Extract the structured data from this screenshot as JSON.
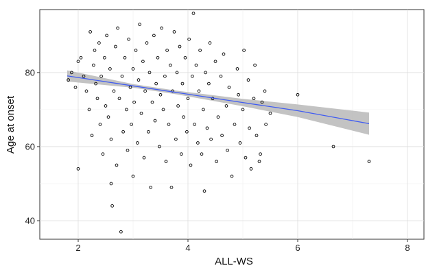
{
  "chart_data": {
    "type": "scatter",
    "title": "",
    "xlabel": "ALL-WS",
    "ylabel": "Age at onset",
    "xlim": [
      1.3,
      8.3
    ],
    "ylim": [
      35,
      97
    ],
    "x_ticks": [
      2,
      4,
      6,
      8
    ],
    "y_ticks": [
      40,
      60,
      80
    ],
    "x_tick_labels": [
      "2",
      "4",
      "6",
      "8"
    ],
    "y_tick_labels": [
      "40",
      "60",
      "80"
    ],
    "grid": true,
    "legend": "none",
    "point_color": "#000000",
    "point_style": "open-circle",
    "fit_line": {
      "method": "linear",
      "color": "#3f5bf2",
      "band_color": "#bdbdbd",
      "points": [
        {
          "x": 1.8,
          "y": 79.1,
          "lower": 77.6,
          "upper": 80.6
        },
        {
          "x": 3.0,
          "y": 76.4,
          "lower": 75.9,
          "upper": 76.9
        },
        {
          "x": 3.8,
          "y": 74.6,
          "lower": 74.1,
          "upper": 75.1
        },
        {
          "x": 5.0,
          "y": 71.9,
          "lower": 70.9,
          "upper": 72.9
        },
        {
          "x": 6.0,
          "y": 69.7,
          "lower": 68.0,
          "upper": 71.4
        },
        {
          "x": 7.3,
          "y": 66.2,
          "lower": 63.2,
          "upper": 69.2
        }
      ]
    },
    "series": [
      {
        "points": [
          [
            1.82,
            78
          ],
          [
            1.88,
            80
          ],
          [
            1.95,
            76
          ],
          [
            2.0,
            83
          ],
          [
            2.0,
            54
          ],
          [
            2.05,
            84
          ],
          [
            2.1,
            79
          ],
          [
            2.15,
            75
          ],
          [
            2.2,
            70
          ],
          [
            2.22,
            91
          ],
          [
            2.25,
            63
          ],
          [
            2.28,
            82
          ],
          [
            2.3,
            86
          ],
          [
            2.32,
            77
          ],
          [
            2.35,
            73
          ],
          [
            2.38,
            88
          ],
          [
            2.4,
            66
          ],
          [
            2.42,
            79
          ],
          [
            2.45,
            58
          ],
          [
            2.48,
            84
          ],
          [
            2.5,
            71
          ],
          [
            2.52,
            90
          ],
          [
            2.55,
            68
          ],
          [
            2.58,
            81
          ],
          [
            2.6,
            62
          ],
          [
            2.6,
            50
          ],
          [
            2.62,
            44
          ],
          [
            2.65,
            75
          ],
          [
            2.68,
            87
          ],
          [
            2.7,
            55
          ],
          [
            2.72,
            92
          ],
          [
            2.75,
            73
          ],
          [
            2.78,
            37
          ],
          [
            2.8,
            79
          ],
          [
            2.82,
            64
          ],
          [
            2.85,
            84
          ],
          [
            2.88,
            70
          ],
          [
            2.9,
            59
          ],
          [
            2.92,
            89
          ],
          [
            2.95,
            76
          ],
          [
            2.97,
            66
          ],
          [
            3.0,
            81
          ],
          [
            3.0,
            52
          ],
          [
            3.02,
            72
          ],
          [
            3.05,
            86
          ],
          [
            3.08,
            61
          ],
          [
            3.1,
            78
          ],
          [
            3.12,
            93
          ],
          [
            3.15,
            69
          ],
          [
            3.18,
            83
          ],
          [
            3.2,
            57
          ],
          [
            3.22,
            75
          ],
          [
            3.25,
            88
          ],
          [
            3.28,
            64
          ],
          [
            3.3,
            80
          ],
          [
            3.32,
            49
          ],
          [
            3.35,
            72
          ],
          [
            3.38,
            90
          ],
          [
            3.4,
            67
          ],
          [
            3.42,
            77
          ],
          [
            3.45,
            84
          ],
          [
            3.48,
            60
          ],
          [
            3.5,
            74
          ],
          [
            3.52,
            92
          ],
          [
            3.55,
            70
          ],
          [
            3.58,
            79
          ],
          [
            3.6,
            56
          ],
          [
            3.62,
            86
          ],
          [
            3.65,
            66
          ],
          [
            3.68,
            82
          ],
          [
            3.7,
            49
          ],
          [
            3.72,
            75
          ],
          [
            3.75,
            91
          ],
          [
            3.78,
            62
          ],
          [
            3.8,
            80
          ],
          [
            3.82,
            71
          ],
          [
            3.85,
            87
          ],
          [
            3.88,
            58
          ],
          [
            3.9,
            77
          ],
          [
            3.92,
            68
          ],
          [
            3.95,
            84
          ],
          [
            3.98,
            64
          ],
          [
            4.0,
            73
          ],
          [
            4.02,
            89
          ],
          [
            4.05,
            55
          ],
          [
            4.08,
            79
          ],
          [
            4.1,
            96
          ],
          [
            4.12,
            66
          ],
          [
            4.15,
            82
          ],
          [
            4.18,
            61
          ],
          [
            4.2,
            75
          ],
          [
            4.22,
            86
          ],
          [
            4.25,
            58
          ],
          [
            4.28,
            70
          ],
          [
            4.3,
            48
          ],
          [
            4.32,
            80
          ],
          [
            4.35,
            65
          ],
          [
            4.38,
            77
          ],
          [
            4.4,
            88
          ],
          [
            4.42,
            62
          ],
          [
            4.45,
            73
          ],
          [
            4.5,
            83
          ],
          [
            4.52,
            56
          ],
          [
            4.55,
            68
          ],
          [
            4.6,
            79
          ],
          [
            4.62,
            63
          ],
          [
            4.65,
            85
          ],
          [
            4.7,
            71
          ],
          [
            4.72,
            59
          ],
          [
            4.75,
            76
          ],
          [
            4.8,
            52
          ],
          [
            4.85,
            66
          ],
          [
            4.9,
            81
          ],
          [
            4.92,
            74
          ],
          [
            4.95,
            61
          ],
          [
            5.0,
            70
          ],
          [
            5.02,
            86
          ],
          [
            5.05,
            57
          ],
          [
            5.1,
            78
          ],
          [
            5.12,
            65
          ],
          [
            5.15,
            54
          ],
          [
            5.2,
            73
          ],
          [
            5.22,
            82
          ],
          [
            5.25,
            63
          ],
          [
            5.3,
            56
          ],
          [
            5.32,
            58
          ],
          [
            5.35,
            72
          ],
          [
            5.4,
            75
          ],
          [
            5.42,
            66
          ],
          [
            5.5,
            69
          ],
          [
            6.0,
            74
          ],
          [
            6.65,
            60
          ],
          [
            7.3,
            56
          ]
        ]
      }
    ]
  }
}
